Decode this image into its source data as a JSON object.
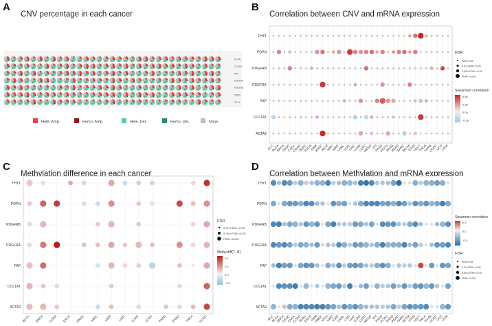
{
  "chart_data": [
    {
      "panel": "A",
      "type": "pie-grid",
      "title": "CNV percentage in each cancer",
      "rows": [
        "ACTA2",
        "COL1A1",
        "FAP",
        "PDGFRA",
        "PDGFRB",
        "PDPN",
        "THY1"
      ],
      "columns": 33,
      "legend": [
        "Hete. Amp.",
        "Homo. Amp.",
        "Hete. Del.",
        "Homo. Del.",
        "None"
      ],
      "colors": {
        "hete_amp": "#e8453c",
        "homo_amp": "#8b1a1a",
        "hete_del": "#5ec9a0",
        "homo_del": "#2e8b6a",
        "none": "#bdbdbd"
      }
    },
    {
      "panel": "B",
      "type": "scatter",
      "title": "Correlation between CNV and mRNA expression",
      "genes": [
        "THY1",
        "PDPN",
        "PDGFRB",
        "PDGFRA",
        "FAP",
        "COL1A1",
        "ACTA2"
      ],
      "cancers": [
        "ACC",
        "BLCA",
        "BRCA",
        "CESC",
        "CHOL",
        "COAD",
        "DLBC",
        "ESCA",
        "GBM",
        "HNSC",
        "KICH",
        "KIRC",
        "KIRP",
        "LAML",
        "LGG",
        "LIHC",
        "LUAD",
        "LUSC",
        "MESO",
        "OV",
        "PAAD",
        "PCPG",
        "PRAD",
        "READ",
        "SARC",
        "SKCM",
        "STAD",
        "TGCT",
        "THCA",
        "THYM",
        "UCEC",
        "UCS",
        "UVM"
      ],
      "size_legend_title": "FDR",
      "size_legend": [
        "FDR>0.05",
        "0.01<FDR<=0.05",
        "0.001<FDR<=0.01",
        "FDR<=0.001"
      ],
      "color_legend_title": "Spearman correlation",
      "color_ticks": [
        "0.50",
        "0.25",
        "0.00",
        "-0.25"
      ],
      "color_range": [
        -0.3,
        0.55
      ],
      "points": [
        [
          "THY1",
          25,
          0.2,
          1
        ],
        [
          "THY1",
          26,
          0.35,
          2
        ],
        [
          "THY1",
          27,
          0.55,
          3
        ],
        [
          "THY1",
          28,
          0.15,
          1
        ],
        [
          "PDPN",
          1,
          0.3,
          2
        ],
        [
          "PDPN",
          3,
          0.15,
          1
        ],
        [
          "PDPN",
          8,
          0.25,
          2
        ],
        [
          "PDPN",
          9,
          0.35,
          2
        ],
        [
          "PDPN",
          11,
          0.2,
          1
        ],
        [
          "PDPN",
          12,
          0.25,
          2
        ],
        [
          "PDPN",
          14,
          0.5,
          3
        ],
        [
          "PDPN",
          15,
          0.3,
          2
        ],
        [
          "PDPN",
          16,
          0.25,
          2
        ],
        [
          "PDPN",
          17,
          0.3,
          2
        ],
        [
          "PDPN",
          18,
          0.35,
          2
        ],
        [
          "PDPN",
          19,
          0.2,
          1
        ],
        [
          "PDPN",
          20,
          0.3,
          2
        ],
        [
          "PDPN",
          22,
          0.25,
          1
        ],
        [
          "PDPN",
          23,
          0.3,
          2
        ],
        [
          "PDPN",
          24,
          0.35,
          2
        ],
        [
          "PDPN",
          25,
          0.2,
          1
        ],
        [
          "PDPN",
          26,
          0.3,
          2
        ],
        [
          "PDGFRB",
          3,
          0.3,
          2
        ],
        [
          "PDGFRB",
          7,
          0.2,
          1
        ],
        [
          "PDGFRB",
          17,
          0.35,
          2
        ],
        [
          "PDGFRB",
          29,
          0.2,
          1
        ],
        [
          "PDGFRB",
          31,
          0.45,
          2
        ],
        [
          "PDGFRA",
          9,
          0.5,
          3
        ],
        [
          "PDGFRA",
          15,
          0.2,
          1
        ],
        [
          "PDGFRA",
          20,
          0.25,
          2
        ],
        [
          "PDGFRA",
          25,
          0.3,
          2
        ],
        [
          "FAP",
          13,
          0.2,
          1
        ],
        [
          "FAP",
          16,
          0.25,
          2
        ],
        [
          "FAP",
          19,
          0.3,
          2
        ],
        [
          "FAP",
          20,
          0.4,
          3
        ],
        [
          "FAP",
          21,
          0.25,
          2
        ],
        [
          "FAP",
          22,
          0.2,
          2
        ],
        [
          "FAP",
          26,
          0.15,
          1
        ],
        [
          "FAP",
          27,
          -0.2,
          2
        ],
        [
          "FAP",
          28,
          0.2,
          1
        ],
        [
          "COL1A1",
          0,
          -0.15,
          2
        ],
        [
          "COL1A1",
          8,
          0.2,
          1
        ],
        [
          "COL1A1",
          15,
          -0.2,
          2
        ],
        [
          "COL1A1",
          17,
          -0.15,
          2
        ],
        [
          "COL1A1",
          18,
          0.2,
          1
        ],
        [
          "COL1A1",
          22,
          0.15,
          1
        ],
        [
          "COL1A1",
          27,
          0.5,
          3
        ],
        [
          "ACTA2",
          9,
          0.55,
          3
        ],
        [
          "ACTA2",
          16,
          0.2,
          2
        ],
        [
          "ACTA2",
          18,
          0.15,
          1
        ],
        [
          "ACTA2",
          21,
          0.2,
          2
        ],
        [
          "ACTA2",
          24,
          -0.2,
          2
        ],
        [
          "ACTA2",
          26,
          0.15,
          1
        ]
      ]
    },
    {
      "panel": "C",
      "type": "scatter",
      "title": "Methylation difference in each cancer",
      "genes": [
        "THY1",
        "PDPN",
        "PDGFRB",
        "PDGFRA",
        "FAP",
        "COL1A1",
        "ACTA2"
      ],
      "cancers": [
        "BLCA",
        "BRCA",
        "COAD",
        "ESCA",
        "HNSC",
        "KIRC",
        "KIRP",
        "LIHC",
        "LUAD",
        "LUSC",
        "PAAD",
        "PRAD",
        "THCA",
        "UCEC"
      ],
      "size_legend_title": "FDR",
      "size_legend": [
        "0.01<FDR<=0.05",
        "0.001<FDR<=0.01",
        "FDR<=0.001"
      ],
      "color_legend_title": "Methy.diff(T−N)",
      "color_ticks": [
        "0.4",
        "0.2",
        "0.0",
        "−0.2"
      ],
      "color_range": [
        -0.25,
        0.45
      ],
      "points": [
        [
          "THY1",
          0,
          0.08,
          3
        ],
        [
          "THY1",
          1,
          -0.05,
          2
        ],
        [
          "THY1",
          3,
          0.15,
          2
        ],
        [
          "THY1",
          4,
          -0.08,
          2
        ],
        [
          "THY1",
          6,
          0.15,
          3
        ],
        [
          "THY1",
          7,
          -0.08,
          2
        ],
        [
          "THY1",
          8,
          -0.1,
          2
        ],
        [
          "THY1",
          9,
          -0.1,
          2
        ],
        [
          "THY1",
          12,
          0.05,
          2
        ],
        [
          "THY1",
          13,
          0.4,
          3
        ],
        [
          "PDPN",
          0,
          0.08,
          2
        ],
        [
          "PDPN",
          1,
          0.3,
          3
        ],
        [
          "PDPN",
          2,
          0.38,
          3
        ],
        [
          "PDPN",
          4,
          0.05,
          2
        ],
        [
          "PDPN",
          5,
          -0.08,
          2
        ],
        [
          "PDPN",
          6,
          0.2,
          3
        ],
        [
          "PDPN",
          8,
          0.08,
          2
        ],
        [
          "PDPN",
          9,
          -0.05,
          2
        ],
        [
          "PDPN",
          11,
          0.35,
          3
        ],
        [
          "PDPN",
          12,
          0.1,
          2
        ],
        [
          "PDPN",
          13,
          0.2,
          3
        ],
        [
          "PDGFRB",
          0,
          0.05,
          2
        ],
        [
          "PDGFRB",
          1,
          0.12,
          3
        ],
        [
          "PDGFRB",
          5,
          0.08,
          2
        ],
        [
          "PDGFRB",
          6,
          0.12,
          3
        ],
        [
          "PDGFRB",
          8,
          0.08,
          2
        ],
        [
          "PDGFRB",
          12,
          0.05,
          2
        ],
        [
          "PDGFRB",
          13,
          0.15,
          3
        ],
        [
          "PDGFRA",
          0,
          0.05,
          2
        ],
        [
          "PDGFRA",
          1,
          0.25,
          3
        ],
        [
          "PDGFRA",
          2,
          0.45,
          3
        ],
        [
          "PDGFRA",
          4,
          -0.12,
          2
        ],
        [
          "PDGFRA",
          5,
          0.1,
          2
        ],
        [
          "PDGFRA",
          6,
          0.15,
          3
        ],
        [
          "PDGFRA",
          7,
          0.08,
          2
        ],
        [
          "PDGFRA",
          8,
          0.12,
          3
        ],
        [
          "PDGFRA",
          9,
          0.1,
          2
        ],
        [
          "PDGFRA",
          11,
          0.2,
          3
        ],
        [
          "PDGFRA",
          12,
          0.05,
          2
        ],
        [
          "PDGFRA",
          13,
          0.12,
          3
        ],
        [
          "FAP",
          0,
          0.1,
          3
        ],
        [
          "FAP",
          1,
          0.28,
          3
        ],
        [
          "FAP",
          5,
          -0.05,
          2
        ],
        [
          "FAP",
          6,
          0.12,
          3
        ],
        [
          "FAP",
          7,
          0.05,
          2
        ],
        [
          "FAP",
          8,
          0.08,
          2
        ],
        [
          "FAP",
          9,
          -0.12,
          3
        ],
        [
          "FAP",
          11,
          0.1,
          2
        ],
        [
          "FAP",
          12,
          0.02,
          1
        ],
        [
          "FAP",
          13,
          0.15,
          3
        ],
        [
          "COL1A1",
          0,
          0.12,
          3
        ],
        [
          "COL1A1",
          1,
          0.08,
          2
        ],
        [
          "COL1A1",
          2,
          0.05,
          2
        ],
        [
          "COL1A1",
          6,
          0.08,
          2
        ],
        [
          "COL1A1",
          11,
          0.05,
          2
        ],
        [
          "COL1A1",
          13,
          0.3,
          3
        ],
        [
          "ACTA2",
          0,
          0.1,
          3
        ],
        [
          "ACTA2",
          1,
          0.12,
          3
        ],
        [
          "ACTA2",
          2,
          0.08,
          2
        ],
        [
          "ACTA2",
          5,
          -0.08,
          2
        ],
        [
          "ACTA2",
          6,
          0.1,
          2
        ],
        [
          "ACTA2",
          8,
          0.05,
          2
        ],
        [
          "ACTA2",
          10,
          -0.1,
          2
        ],
        [
          "ACTA2",
          11,
          0.05,
          2
        ],
        [
          "ACTA2",
          12,
          0.1,
          2
        ],
        [
          "ACTA2",
          13,
          0.35,
          3
        ]
      ]
    },
    {
      "panel": "D",
      "type": "scatter",
      "title": "Correlation between Methylation and mRNA expression",
      "genes": [
        "THY1",
        "PDPN",
        "PDGFRB",
        "PDGFRA",
        "FAP",
        "COL1A1",
        "ACTA2"
      ],
      "cancers": [
        "ACC",
        "BLCA",
        "BRCA",
        "CESC",
        "CHOL",
        "COAD",
        "DLBC",
        "ESCA",
        "GBM",
        "HNSC",
        "KICH",
        "KIRC",
        "KIRP",
        "LAML",
        "LGG",
        "LIHC",
        "LUAD",
        "LUSC",
        "MESO",
        "OV",
        "PAAD",
        "PCPG",
        "PRAD",
        "READ",
        "SARC",
        "SKCM",
        "STAD",
        "TGCT",
        "THCA",
        "THYM",
        "UCEC",
        "UCS",
        "UVM"
      ],
      "color_legend_title": "Spearman correlation",
      "color_ticks": [
        "0.5",
        "0.0",
        "-0.5"
      ],
      "color_range": [
        -0.8,
        0.5
      ],
      "size_legend_title": "FDR",
      "size_legend": [
        "FDR>0.05",
        "0.01<FDR<=0.05",
        "0.001<FDR<=0.01",
        "FDR<=0.001"
      ],
      "special_points": [
        [
          "FAP",
          27,
          0.45,
          3
        ],
        [
          "FAP",
          28,
          0.05,
          1
        ],
        [
          "FAP",
          26,
          -0.1,
          1
        ],
        [
          "PDGFRA",
          9,
          0.1,
          1
        ],
        [
          "THY1",
          23,
          -0.85,
          3
        ],
        [
          "THY1",
          17,
          -0.8,
          3
        ],
        [
          "PDPN",
          19,
          -0.7,
          3
        ]
      ]
    }
  ],
  "labels": {
    "A": "A",
    "B": "B",
    "C": "C",
    "D": "D"
  }
}
